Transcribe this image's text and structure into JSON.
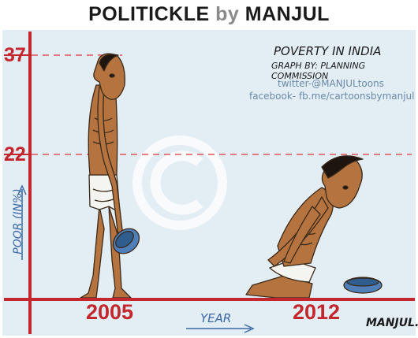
{
  "header": {
    "part1": "POLITICKLE",
    "part2": "by",
    "part3": "MANJUL"
  },
  "cartoon": {
    "title": "POVERTY IN INDIA",
    "subtitle": "GRAPH BY: PLANNING COMMISSION",
    "twitter": "twitter-@MANJULtoons",
    "facebook": "facebook- fb.me/cartoonsbymanjul",
    "signature": "MANJUL.",
    "watermark": "©"
  },
  "chart_data": {
    "type": "bar",
    "categories": [
      "2005",
      "2012"
    ],
    "values": [
      37,
      22
    ],
    "xlabel": "YEAR",
    "ylabel": "POOR (IN%)",
    "y_tick_labels": [
      "37",
      "22"
    ]
  },
  "colors": {
    "axis": "#c4262e",
    "guide": "#e0555b",
    "panel_bg": "#e3edf4",
    "label_blue": "#3a68a8",
    "watermark": "#ffffff"
  }
}
